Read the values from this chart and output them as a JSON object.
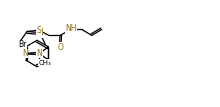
{
  "bg_color": "#ffffff",
  "line_color": "#000000",
  "n_color": "#8B6914",
  "s_color": "#8B6914",
  "o_color": "#8B6914",
  "br_color": "#000000",
  "figsize": [
    2.2,
    1.07
  ],
  "dpi": 100,
  "lw": 0.9,
  "fs": 5.5,
  "xlim": [
    -0.5,
    11.5
  ],
  "ylim": [
    1.0,
    6.0
  ]
}
